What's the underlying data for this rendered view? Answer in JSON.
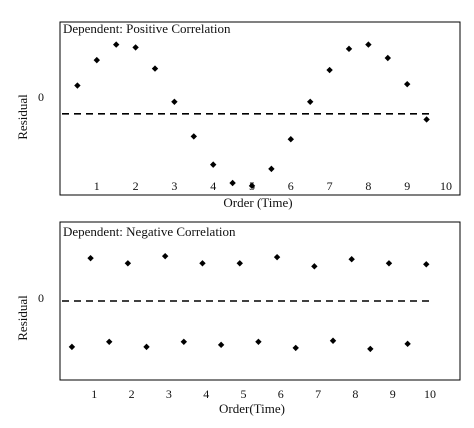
{
  "chart_data": [
    {
      "type": "scatter",
      "title": "Dependent: Positive Correlation",
      "xlabel": "Order (Time)",
      "ylabel": "Residual",
      "x_ticks": [
        "1",
        "2",
        "3",
        "4",
        "5",
        "6",
        "7",
        "8",
        "9",
        "10"
      ],
      "y_ticks": [
        "0"
      ],
      "xlim": [
        0.0,
        10.6
      ],
      "ylim": [
        -1.15,
        1.3
      ],
      "zero_line": "dashed",
      "grid": false,
      "marker": "diamond",
      "marker_color": "#000000",
      "points": [
        {
          "x": 0.5,
          "y": 0.4
        },
        {
          "x": 1.0,
          "y": 0.76
        },
        {
          "x": 1.5,
          "y": 0.98
        },
        {
          "x": 2.0,
          "y": 0.94
        },
        {
          "x": 2.5,
          "y": 0.64
        },
        {
          "x": 3.0,
          "y": 0.17
        },
        {
          "x": 3.5,
          "y": -0.32
        },
        {
          "x": 4.0,
          "y": -0.72
        },
        {
          "x": 4.5,
          "y": -0.98
        },
        {
          "x": 5.0,
          "y": -1.02
        },
        {
          "x": 5.5,
          "y": -0.78
        },
        {
          "x": 6.0,
          "y": -0.36
        },
        {
          "x": 6.5,
          "y": 0.17
        },
        {
          "x": 7.0,
          "y": 0.62
        },
        {
          "x": 7.5,
          "y": 0.92
        },
        {
          "x": 8.0,
          "y": 0.98
        },
        {
          "x": 8.5,
          "y": 0.79
        },
        {
          "x": 9.0,
          "y": 0.42
        },
        {
          "x": 9.5,
          "y": -0.08
        }
      ]
    },
    {
      "type": "scatter",
      "title": "Dependent: Negative Correlation",
      "xlabel": "Order(Time)",
      "ylabel": "Residual",
      "x_ticks": [
        "1",
        "2",
        "3",
        "4",
        "5",
        "6",
        "7",
        "8",
        "9",
        "10"
      ],
      "y_ticks": [
        "0"
      ],
      "xlim": [
        0.0,
        10.6
      ],
      "ylim": [
        -1.55,
        1.55
      ],
      "zero_line": "dashed",
      "grid": false,
      "marker": "diamond",
      "marker_color": "#000000",
      "points": [
        {
          "x": 0.4,
          "y": -0.9
        },
        {
          "x": 0.9,
          "y": 0.84
        },
        {
          "x": 1.4,
          "y": -0.8
        },
        {
          "x": 1.9,
          "y": 0.74
        },
        {
          "x": 2.4,
          "y": -0.9
        },
        {
          "x": 2.9,
          "y": 0.88
        },
        {
          "x": 3.4,
          "y": -0.8
        },
        {
          "x": 3.9,
          "y": 0.74
        },
        {
          "x": 4.4,
          "y": -0.86
        },
        {
          "x": 4.9,
          "y": 0.74
        },
        {
          "x": 5.4,
          "y": -0.8
        },
        {
          "x": 5.9,
          "y": 0.86
        },
        {
          "x": 6.4,
          "y": -0.92
        },
        {
          "x": 6.9,
          "y": 0.68
        },
        {
          "x": 7.4,
          "y": -0.78
        },
        {
          "x": 7.9,
          "y": 0.82
        },
        {
          "x": 8.4,
          "y": -0.94
        },
        {
          "x": 8.9,
          "y": 0.74
        },
        {
          "x": 9.4,
          "y": -0.84
        },
        {
          "x": 9.9,
          "y": 0.72
        }
      ]
    }
  ]
}
